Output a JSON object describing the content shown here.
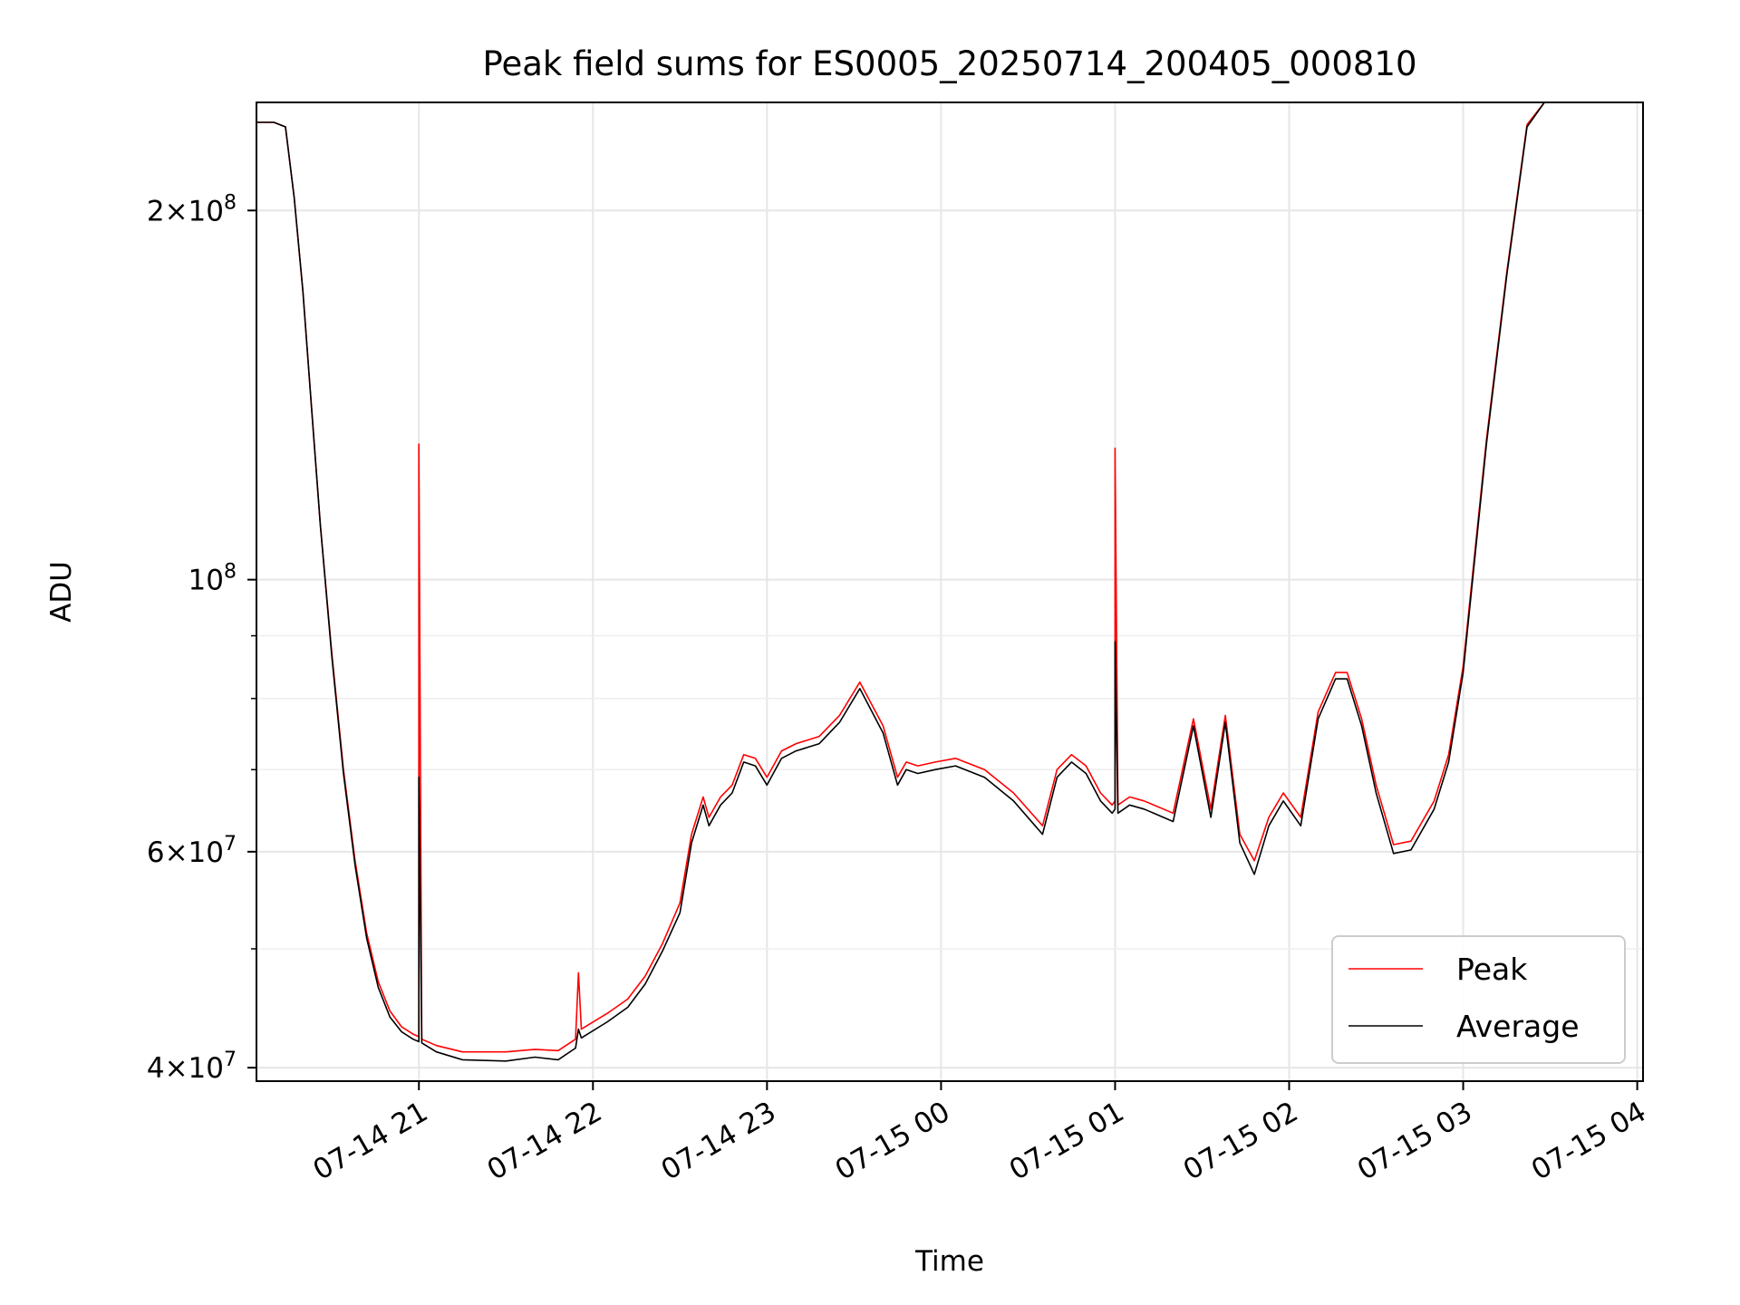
{
  "chart_data": {
    "type": "line",
    "title": "Peak field sums for ES0005_20250714_200405_000810",
    "xlabel": "Time",
    "ylabel": "ADU",
    "y_scale": "log",
    "ylim": [
      39000000,
      245000000
    ],
    "xlim": [
      "2025-07-14 20:04",
      "2025-07-15 04:02"
    ],
    "grid": true,
    "legend_position": "bottom-right",
    "x_ticks": [
      {
        "time": "2025-07-14 21:00",
        "label": "07-14 21"
      },
      {
        "time": "2025-07-14 22:00",
        "label": "07-14 22"
      },
      {
        "time": "2025-07-14 23:00",
        "label": "07-14 23"
      },
      {
        "time": "2025-07-15 00:00",
        "label": "07-15 00"
      },
      {
        "time": "2025-07-15 01:00",
        "label": "07-15 01"
      },
      {
        "time": "2025-07-15 02:00",
        "label": "07-15 02"
      },
      {
        "time": "2025-07-15 03:00",
        "label": "07-15 03"
      },
      {
        "time": "2025-07-15 04:00",
        "label": "07-15 04"
      }
    ],
    "y_ticks": [
      {
        "value": 40000000,
        "mant": "4",
        "exp": "7",
        "times": true
      },
      {
        "value": 60000000,
        "mant": "6",
        "exp": "7",
        "times": true
      },
      {
        "value": 100000000,
        "mant": "10",
        "exp": "8",
        "times": false
      },
      {
        "value": 200000000,
        "mant": "2",
        "exp": "8",
        "times": true
      }
    ],
    "y_minor_ticks": [
      50000000,
      70000000,
      80000000,
      90000000
    ],
    "series": [
      {
        "name": "Peak",
        "color": "#ff0000",
        "x": [
          "2025-07-14 20:04",
          "2025-07-14 20:10",
          "2025-07-14 20:14",
          "2025-07-14 20:17",
          "2025-07-14 20:20",
          "2025-07-14 20:23",
          "2025-07-14 20:26",
          "2025-07-14 20:30",
          "2025-07-14 20:34",
          "2025-07-14 20:38",
          "2025-07-14 20:42",
          "2025-07-14 20:46",
          "2025-07-14 20:50",
          "2025-07-14 20:54",
          "2025-07-14 20:58",
          "2025-07-14 21:00",
          "2025-07-14 21:00",
          "2025-07-14 21:01",
          "2025-07-14 21:01",
          "2025-07-14 21:06",
          "2025-07-14 21:15",
          "2025-07-14 21:30",
          "2025-07-14 21:40",
          "2025-07-14 21:48",
          "2025-07-14 21:54",
          "2025-07-14 21:55",
          "2025-07-14 21:56",
          "2025-07-14 22:05",
          "2025-07-14 22:12",
          "2025-07-14 22:18",
          "2025-07-14 22:24",
          "2025-07-14 22:30",
          "2025-07-14 22:34",
          "2025-07-14 22:38",
          "2025-07-14 22:40",
          "2025-07-14 22:44",
          "2025-07-14 22:48",
          "2025-07-14 22:52",
          "2025-07-14 22:56",
          "2025-07-14 23:00",
          "2025-07-14 23:05",
          "2025-07-14 23:10",
          "2025-07-14 23:18",
          "2025-07-14 23:25",
          "2025-07-14 23:32",
          "2025-07-14 23:40",
          "2025-07-14 23:45",
          "2025-07-14 23:48",
          "2025-07-14 23:52",
          "2025-07-14 23:58",
          "2025-07-15 00:05",
          "2025-07-15 00:15",
          "2025-07-15 00:25",
          "2025-07-15 00:35",
          "2025-07-15 00:40",
          "2025-07-15 00:45",
          "2025-07-15 00:50",
          "2025-07-15 00:55",
          "2025-07-15 00:59",
          "2025-07-15 01:00",
          "2025-07-15 01:00",
          "2025-07-15 01:01",
          "2025-07-15 01:05",
          "2025-07-15 01:10",
          "2025-07-15 01:20",
          "2025-07-15 01:27",
          "2025-07-15 01:33",
          "2025-07-15 01:38",
          "2025-07-15 01:43",
          "2025-07-15 01:48",
          "2025-07-15 01:53",
          "2025-07-15 01:58",
          "2025-07-15 02:04",
          "2025-07-15 02:10",
          "2025-07-15 02:16",
          "2025-07-15 02:20",
          "2025-07-15 02:25",
          "2025-07-15 02:30",
          "2025-07-15 02:36",
          "2025-07-15 02:42",
          "2025-07-15 02:50",
          "2025-07-15 02:55",
          "2025-07-15 03:00",
          "2025-07-15 03:08",
          "2025-07-15 03:15",
          "2025-07-15 03:22",
          "2025-07-15 03:28",
          "2025-07-15 03:34",
          "2025-07-15 03:40",
          "2025-07-15 03:42"
        ],
        "values": [
          236000000,
          236000000,
          234000000,
          205000000,
          172000000,
          138000000,
          111000000,
          87000000,
          70000000,
          59000000,
          51500000,
          47000000,
          44500000,
          43200000,
          42600000,
          42400000,
          129000000,
          42300000,
          42200000,
          41700000,
          41200000,
          41200000,
          41400000,
          41300000,
          42200000,
          47800000,
          43000000,
          44300000,
          45500000,
          47500000,
          50500000,
          54500000,
          62000000,
          66500000,
          64000000,
          66500000,
          68000000,
          72000000,
          71500000,
          69000000,
          72500000,
          73500000,
          74500000,
          77500000,
          82500000,
          76000000,
          69000000,
          71000000,
          70500000,
          71000000,
          71500000,
          70000000,
          67000000,
          63000000,
          70000000,
          72000000,
          70500000,
          67000000,
          65500000,
          66000000,
          128000000,
          65500000,
          66500000,
          66000000,
          64500000,
          77000000,
          65000000,
          77500000,
          62000000,
          59000000,
          64000000,
          67000000,
          64000000,
          78000000,
          84000000,
          84000000,
          77000000,
          68000000,
          60800000,
          61200000,
          66000000,
          72000000,
          85000000,
          130000000,
          178000000,
          235000000,
          245000000,
          245000000,
          245000000,
          245000000
        ]
      },
      {
        "name": "Average",
        "color": "#000000",
        "x": [
          "2025-07-14 20:04",
          "2025-07-14 20:10",
          "2025-07-14 20:14",
          "2025-07-14 20:17",
          "2025-07-14 20:20",
          "2025-07-14 20:23",
          "2025-07-14 20:26",
          "2025-07-14 20:30",
          "2025-07-14 20:34",
          "2025-07-14 20:38",
          "2025-07-14 20:42",
          "2025-07-14 20:46",
          "2025-07-14 20:50",
          "2025-07-14 20:54",
          "2025-07-14 20:58",
          "2025-07-14 21:00",
          "2025-07-14 21:00",
          "2025-07-14 21:01",
          "2025-07-14 21:01",
          "2025-07-14 21:06",
          "2025-07-14 21:15",
          "2025-07-14 21:30",
          "2025-07-14 21:40",
          "2025-07-14 21:48",
          "2025-07-14 21:54",
          "2025-07-14 21:55",
          "2025-07-14 21:56",
          "2025-07-14 22:05",
          "2025-07-14 22:12",
          "2025-07-14 22:18",
          "2025-07-14 22:24",
          "2025-07-14 22:30",
          "2025-07-14 22:34",
          "2025-07-14 22:38",
          "2025-07-14 22:40",
          "2025-07-14 22:44",
          "2025-07-14 22:48",
          "2025-07-14 22:52",
          "2025-07-14 22:56",
          "2025-07-14 23:00",
          "2025-07-14 23:05",
          "2025-07-14 23:10",
          "2025-07-14 23:18",
          "2025-07-14 23:25",
          "2025-07-14 23:32",
          "2025-07-14 23:40",
          "2025-07-14 23:45",
          "2025-07-14 23:48",
          "2025-07-14 23:52",
          "2025-07-14 23:58",
          "2025-07-15 00:05",
          "2025-07-15 00:15",
          "2025-07-15 00:25",
          "2025-07-15 00:35",
          "2025-07-15 00:40",
          "2025-07-15 00:45",
          "2025-07-15 00:50",
          "2025-07-15 00:55",
          "2025-07-15 00:59",
          "2025-07-15 01:00",
          "2025-07-15 01:00",
          "2025-07-15 01:01",
          "2025-07-15 01:05",
          "2025-07-15 01:10",
          "2025-07-15 01:20",
          "2025-07-15 01:27",
          "2025-07-15 01:33",
          "2025-07-15 01:38",
          "2025-07-15 01:43",
          "2025-07-15 01:48",
          "2025-07-15 01:53",
          "2025-07-15 01:58",
          "2025-07-15 02:04",
          "2025-07-15 02:10",
          "2025-07-15 02:16",
          "2025-07-15 02:20",
          "2025-07-15 02:25",
          "2025-07-15 02:30",
          "2025-07-15 02:36",
          "2025-07-15 02:42",
          "2025-07-15 02:50",
          "2025-07-15 02:55",
          "2025-07-15 03:00",
          "2025-07-15 03:08",
          "2025-07-15 03:15",
          "2025-07-15 03:22",
          "2025-07-15 03:28",
          "2025-07-15 03:34",
          "2025-07-15 03:40",
          "2025-07-15 03:42"
        ],
        "values": [
          236000000,
          236000000,
          234000000,
          205000000,
          172000000,
          138000000,
          111000000,
          86500000,
          69500000,
          58500000,
          51000000,
          46500000,
          44000000,
          42800000,
          42200000,
          42000000,
          69000000,
          42000000,
          41900000,
          41200000,
          40600000,
          40500000,
          40800000,
          40600000,
          41500000,
          43000000,
          42300000,
          43600000,
          44800000,
          46800000,
          49800000,
          53500000,
          61000000,
          65500000,
          63000000,
          65500000,
          67000000,
          71000000,
          70500000,
          68000000,
          71500000,
          72500000,
          73500000,
          76500000,
          81500000,
          75000000,
          68000000,
          70000000,
          69500000,
          70000000,
          70500000,
          69000000,
          66000000,
          62000000,
          69000000,
          71000000,
          69500000,
          66000000,
          64500000,
          65000000,
          89000000,
          64500000,
          65500000,
          65000000,
          63500000,
          76000000,
          64000000,
          76500000,
          61000000,
          57500000,
          63000000,
          66000000,
          63000000,
          77000000,
          83000000,
          83000000,
          76000000,
          67000000,
          59800000,
          60200000,
          65000000,
          71000000,
          84000000,
          129000000,
          177000000,
          234000000,
          245000000,
          245000000,
          245000000,
          245000000
        ]
      }
    ]
  }
}
